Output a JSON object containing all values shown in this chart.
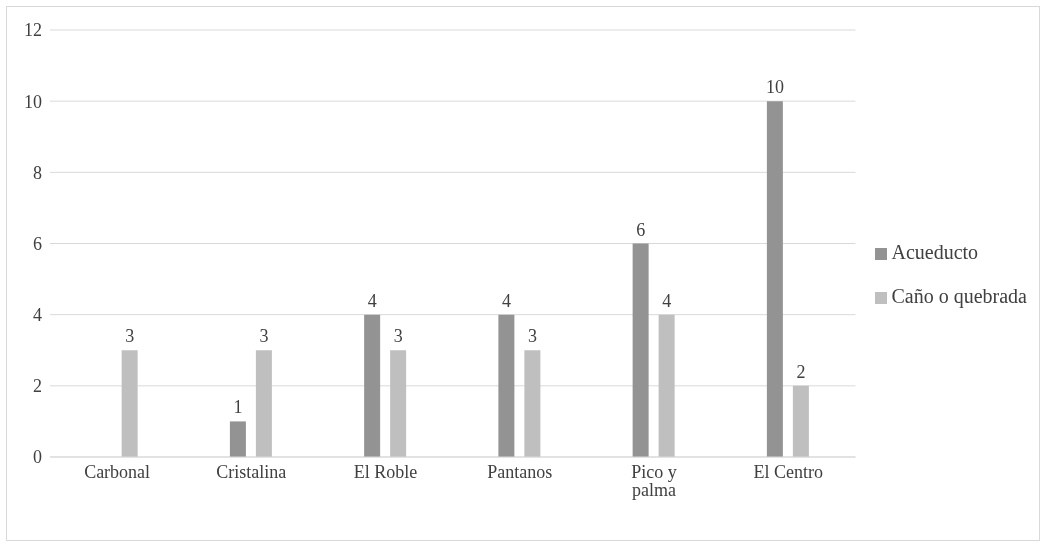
{
  "chart_data": {
    "type": "bar",
    "categories": [
      "Carbonal",
      "Cristalina",
      "El Roble",
      "Pantanos",
      "Pico y palma",
      "El Centro"
    ],
    "series": [
      {
        "name": "Acueducto",
        "color": "#939393",
        "values": [
          null,
          1,
          4,
          4,
          6,
          10
        ]
      },
      {
        "name": "Caño o quebrada",
        "color": "#bfbfbf",
        "values": [
          3,
          3,
          3,
          3,
          4,
          2
        ]
      }
    ],
    "ylim": [
      0,
      12
    ],
    "yticks": [
      0,
      2,
      4,
      6,
      8,
      10,
      12
    ],
    "grid": "y",
    "legend": "right",
    "data_labels": true
  }
}
